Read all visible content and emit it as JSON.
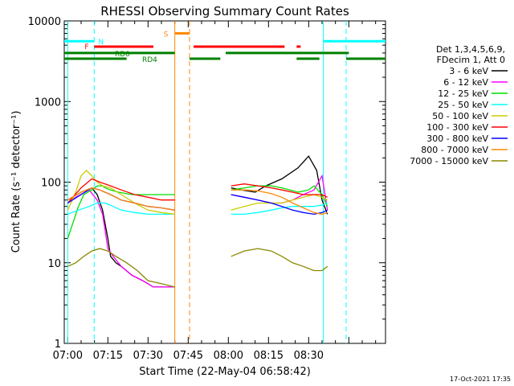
{
  "chart_data": {
    "type": "line",
    "title": "RHESSI Observing Summary Count Rates",
    "xlabel": "Start Time (22-May-04 06:58:42)",
    "ylabel": "Count Rate (s⁻¹ detector⁻¹)",
    "x_ticks": [
      "07:00",
      "07:15",
      "07:30",
      "07:45",
      "08:00",
      "08:15",
      "08:30"
    ],
    "x_tick_minutes": [
      0,
      15,
      30,
      45,
      60,
      75,
      90
    ],
    "xlim_minutes": [
      -1.3,
      118.7
    ],
    "y_scale": "log",
    "ylim": [
      1,
      10000
    ],
    "y_ticks": [
      "1",
      "10",
      "100",
      "1000",
      "10000"
    ],
    "y_tick_values": [
      1,
      10,
      100,
      1000,
      10000
    ],
    "legend_position": "right",
    "legend_header": [
      "Det 1,3,4,5,6,9,",
      "FDecim 1, Att 0"
    ],
    "timestamp": "17-Oct-2021 17:35",
    "series": [
      {
        "name": "3 - 6 keV",
        "color": "#000000",
        "segments": [
          {
            "x": [
              0,
              5,
              9,
              11,
              13,
              14,
              15,
              16,
              18,
              20,
              24,
              28,
              32,
              34,
              38,
              40
            ],
            "y": [
              60,
              75,
              85,
              70,
              45,
              30,
              20,
              12,
              10,
              9,
              7,
              6,
              5,
              5,
              5,
              5
            ]
          },
          {
            "x": [
              61,
              65,
              70,
              74,
              80,
              86,
              90,
              93,
              95,
              97
            ],
            "y": [
              85,
              80,
              75,
              90,
              110,
              150,
              210,
              140,
              60,
              40
            ]
          }
        ]
      },
      {
        "name": "6 - 12 keV",
        "color": "#ff00ff",
        "segments": [
          {
            "x": [
              0,
              3,
              8,
              11,
              13,
              14,
              15,
              17,
              20,
              24,
              28,
              32,
              34,
              38,
              40
            ],
            "y": [
              55,
              65,
              80,
              60,
              40,
              25,
              15,
              12,
              9,
              7,
              6,
              5,
              5,
              5,
              5
            ]
          },
          {
            "x": [
              61,
              66,
              71,
              76,
              80,
              84,
              88,
              92,
              95,
              97
            ],
            "y": [
              70,
              65,
              60,
              55,
              55,
              60,
              70,
              80,
              120,
              45
            ]
          }
        ]
      },
      {
        "name": "12 - 25 keV",
        "color": "#00dd00",
        "segments": [
          {
            "x": [
              0,
              4,
              6,
              9,
              11,
              13,
              14,
              16,
              19,
              24,
              30,
              36,
              40
            ],
            "y": [
              20,
              50,
              70,
              80,
              90,
              90,
              85,
              80,
              75,
              70,
              70,
              70,
              70
            ]
          },
          {
            "x": [
              61,
              66,
              71,
              76,
              80,
              83,
              86,
              90,
              92,
              95,
              97
            ],
            "y": [
              80,
              85,
              90,
              90,
              85,
              80,
              75,
              80,
              90,
              70,
              50
            ]
          }
        ]
      },
      {
        "name": "25 - 50 keV",
        "color": "#00ffff",
        "segments": [
          {
            "x": [
              0,
              4,
              8,
              11,
              14,
              17,
              20,
              25,
              30,
              34,
              38,
              40
            ],
            "y": [
              40,
              45,
              50,
              55,
              55,
              50,
              45,
              42,
              40,
              40,
              40,
              40
            ]
          },
          {
            "x": [
              61,
              66,
              71,
              76,
              80,
              84,
              88,
              92,
              95,
              97
            ],
            "y": [
              40,
              40,
              42,
              45,
              48,
              50,
              50,
              50,
              52,
              55
            ]
          }
        ]
      },
      {
        "name": "50 - 100 keV",
        "color": "#cccc00",
        "segments": [
          {
            "x": [
              0,
              3,
              5,
              7,
              9,
              11,
              13,
              16,
              20,
              25,
              30,
              35,
              40
            ],
            "y": [
              45,
              75,
              120,
              140,
              120,
              100,
              90,
              85,
              70,
              55,
              45,
              42,
              40
            ]
          },
          {
            "x": [
              61,
              66,
              71,
              76,
              80,
              84,
              88,
              92,
              95,
              97
            ],
            "y": [
              45,
              50,
              55,
              55,
              55,
              60,
              65,
              70,
              65,
              60
            ]
          }
        ]
      },
      {
        "name": "100 - 300 keV",
        "color": "#ff0000",
        "segments": [
          {
            "x": [
              0,
              5,
              9,
              12,
              16,
              20,
              25,
              30,
              35,
              40
            ],
            "y": [
              55,
              85,
              110,
              100,
              90,
              80,
              70,
              65,
              60,
              60
            ]
          },
          {
            "x": [
              61,
              66,
              71,
              76,
              80,
              84,
              88,
              92,
              95,
              97
            ],
            "y": [
              90,
              95,
              90,
              85,
              80,
              75,
              70,
              70,
              70,
              65
            ]
          }
        ]
      },
      {
        "name": "300 - 800 keV",
        "color": "#0000ff",
        "segments": [
          {
            "x": [
              0,
              5,
              9,
              12,
              16,
              20,
              25,
              30,
              35,
              40
            ],
            "y": [
              55,
              70,
              85,
              80,
              70,
              60,
              55,
              50,
              48,
              45
            ]
          },
          {
            "x": [
              61,
              66,
              71,
              76,
              80,
              84,
              88,
              92,
              95,
              97
            ],
            "y": [
              70,
              65,
              60,
              55,
              50,
              45,
              42,
              40,
              42,
              45
            ]
          }
        ]
      },
      {
        "name": "800 - 7000 keV",
        "color": "#ff8800",
        "segments": [
          {
            "x": [
              0,
              5,
              9,
              12,
              16,
              20,
              25,
              30,
              35,
              40
            ],
            "y": [
              60,
              75,
              85,
              80,
              70,
              60,
              55,
              50,
              48,
              45
            ]
          },
          {
            "x": [
              61,
              66,
              71,
              76,
              80,
              84,
              88,
              92,
              95,
              97
            ],
            "y": [
              80,
              80,
              78,
              72,
              65,
              55,
              48,
              42,
              40,
              42
            ]
          }
        ]
      },
      {
        "name": "7000 - 15000 keV",
        "color": "#888800",
        "segments": [
          {
            "x": [
              0,
              3,
              6,
              9,
              12,
              15,
              18,
              22,
              26,
              30,
              35,
              40
            ],
            "y": [
              9,
              10,
              12,
              14,
              15,
              14,
              12,
              10,
              8,
              6,
              5.5,
              5
            ]
          },
          {
            "x": [
              61,
              66,
              71,
              76,
              80,
              84,
              88,
              92,
              95,
              97
            ],
            "y": [
              12,
              14,
              15,
              14,
              12,
              10,
              9,
              8,
              8,
              9
            ]
          }
        ]
      }
    ],
    "annotations": {
      "flare_bars": {
        "label": "F",
        "color": "#ff0000",
        "y": 4800,
        "spans": [
          [
            9.9,
            32.0
          ],
          [
            47.0,
            81.0
          ],
          [
            85.5,
            87.0
          ]
        ]
      },
      "night_bars": {
        "label": "N",
        "color": "#00ffff",
        "y": 5600,
        "spans": [
          [
            -1.3,
            9.9
          ],
          [
            95.5,
            118.7
          ]
        ]
      },
      "saa_bars": {
        "label": "S",
        "color": "#ff8800",
        "y": 7000,
        "spans": [
          [
            40.0,
            45.5
          ]
        ]
      },
      "rd0_bars": {
        "label": "RD0",
        "color": "#008000",
        "y": 4000,
        "spans": [
          [
            -1.3,
            40.0
          ],
          [
            59.0,
            105.0
          ]
        ]
      },
      "rd4_bars": {
        "label": "RD4",
        "color": "#008000",
        "y": 3400,
        "spans": [
          [
            -1.3,
            22.0
          ],
          [
            45.5,
            57.0
          ],
          [
            85.5,
            94.0
          ],
          [
            104.0,
            118.7
          ]
        ]
      },
      "vertical_lines": [
        {
          "x": 0.0,
          "color": "#00ffff",
          "style": "solid"
        },
        {
          "x": 9.9,
          "color": "#00ffff",
          "style": "dashed"
        },
        {
          "x": 40.0,
          "color": "#ff8800",
          "style": "solid"
        },
        {
          "x": 45.5,
          "color": "#ff8800",
          "style": "dashed"
        },
        {
          "x": 95.5,
          "color": "#00ffff",
          "style": "solid"
        },
        {
          "x": 104.0,
          "color": "#00ffff",
          "style": "dashed"
        }
      ]
    }
  }
}
